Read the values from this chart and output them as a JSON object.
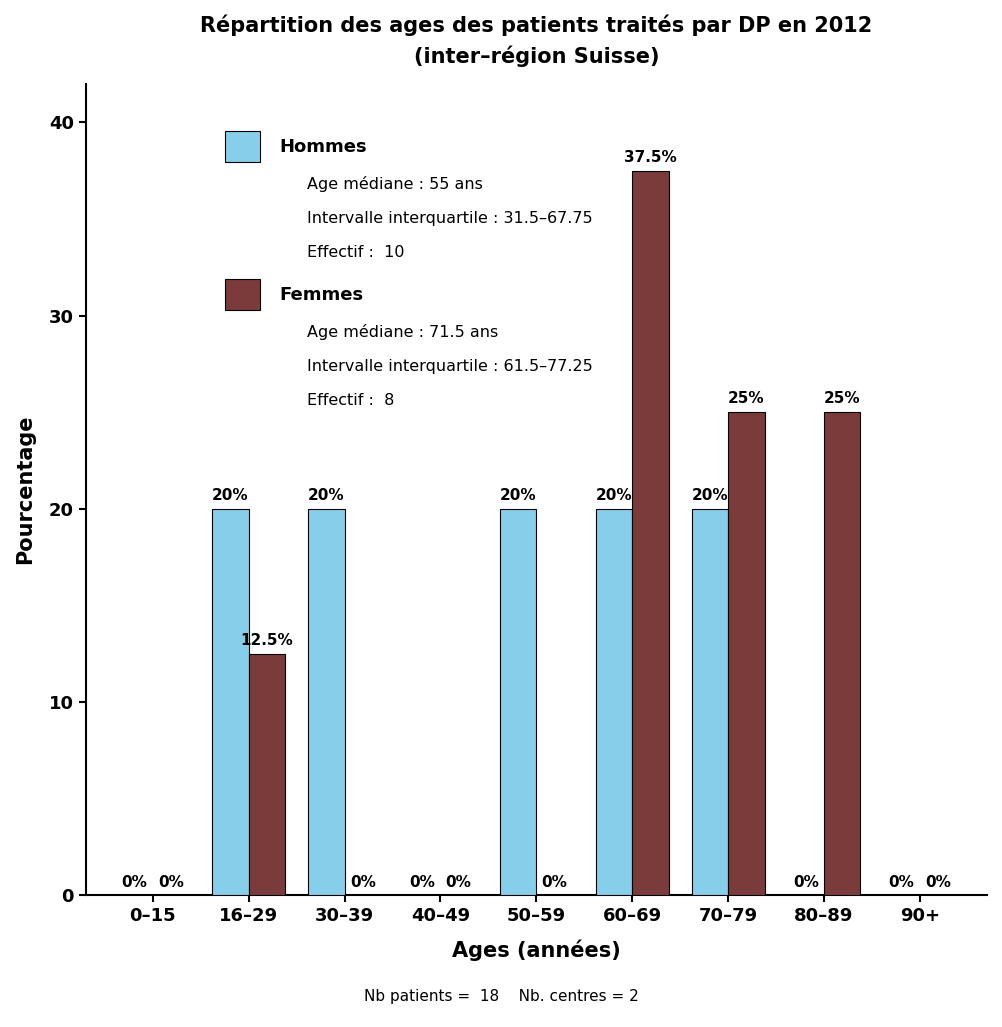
{
  "title_line1": "Répartition des ages des patients traités par DP en 2012",
  "title_line2": "(inter–région Suisse)",
  "xlabel": "Ages (années)",
  "ylabel": "Pourcentage",
  "footer": "Nb patients =  18    Nb. centres = 2",
  "categories": [
    "0–15",
    "16–29",
    "30–39",
    "40–49",
    "50–59",
    "60–69",
    "70–79",
    "80–89",
    "90+"
  ],
  "hommes_values": [
    0,
    20,
    20,
    0,
    20,
    20,
    20,
    0,
    0
  ],
  "femmes_values": [
    0,
    12.5,
    0,
    0,
    0,
    37.5,
    25,
    25,
    0
  ],
  "hommes_labels": [
    "0%",
    "20%",
    "20%",
    "0%",
    "20%",
    "20%",
    "20%",
    "0%",
    "0%"
  ],
  "femmes_labels": [
    "0%",
    "12.5%",
    "0%",
    "0%",
    "0%",
    "37.5%",
    "25%",
    "25%",
    "0%"
  ],
  "hommes_color": "#87CEEB",
  "femmes_color": "#7B3B3B",
  "ylim": [
    0,
    42
  ],
  "yticks": [
    0,
    10,
    20,
    30,
    40
  ],
  "bar_width": 0.38,
  "legend_hommes_title": "Hommes",
  "legend_hommes_line1": "Age médiane : 55 ans",
  "legend_hommes_line2": "Intervalle interquartile : 31.5–67.75",
  "legend_hommes_line3": "Effectif :  10",
  "legend_femmes_title": "Femmes",
  "legend_femmes_line1": "Age médiane : 71.5 ans",
  "legend_femmes_line2": "Intervalle interquartile : 61.5–77.25",
  "legend_femmes_line3": "Effectif :  8",
  "background_color": "#ffffff"
}
